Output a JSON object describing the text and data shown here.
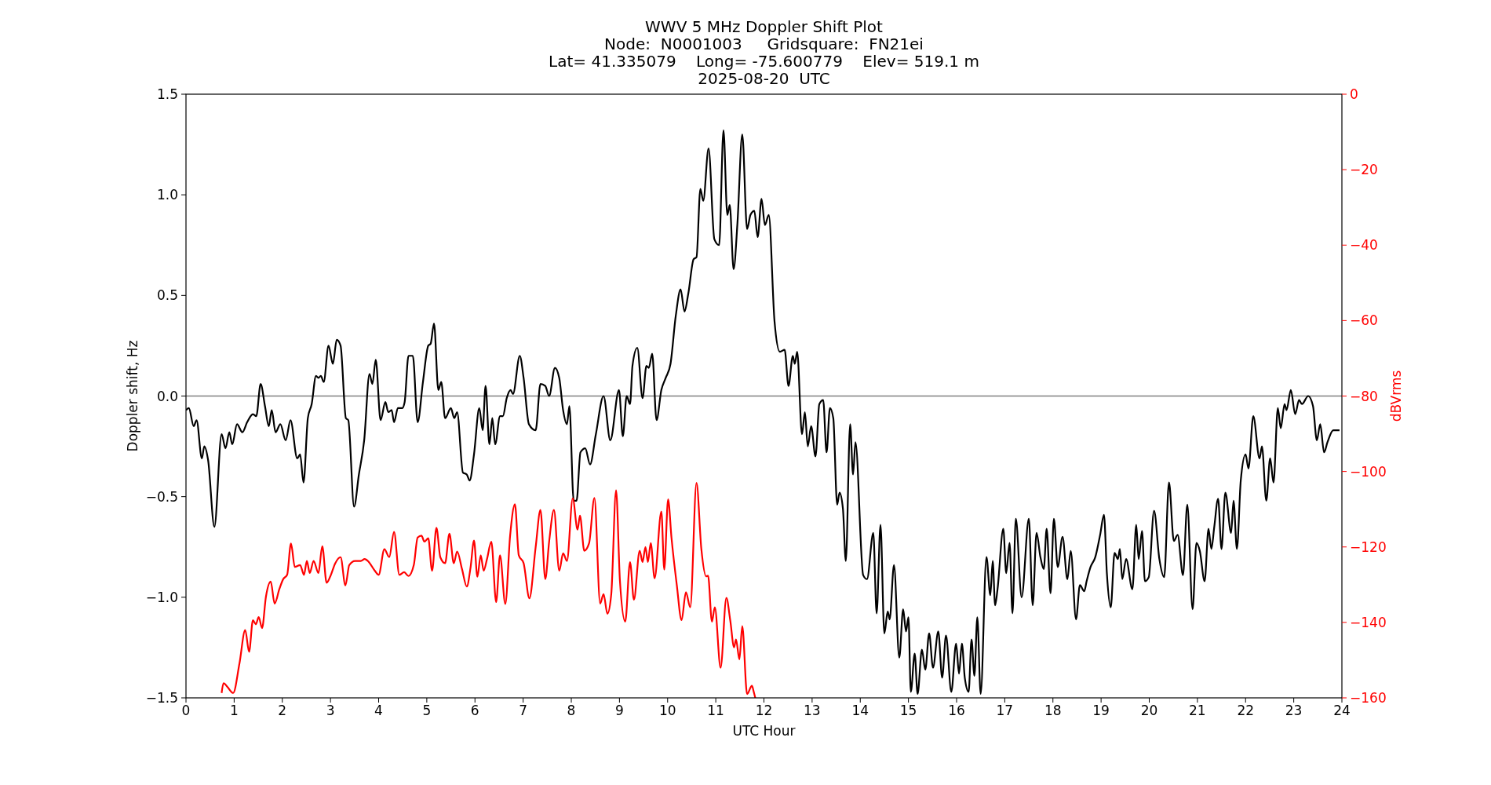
{
  "chart_data": {
    "type": "line",
    "title": "WWV 5 MHz Doppler Shift Plot\nNode:  N0001003     Gridsquare:  FN21ei\nLat= 41.335079    Long= -75.600779    Elev= 519.1 m\n2025-08-20  UTC",
    "xlabel": "UTC Hour",
    "ylabel": "Doppler shift, Hz",
    "y2label": "dBVrms",
    "xlim": [
      0,
      24
    ],
    "xticks": [
      0,
      1,
      2,
      3,
      4,
      5,
      6,
      7,
      8,
      9,
      10,
      11,
      12,
      13,
      14,
      15,
      16,
      17,
      18,
      19,
      20,
      21,
      22,
      23,
      24
    ],
    "ylim": [
      -1.5,
      1.5
    ],
    "yticks": [
      {
        "value": -1.5,
        "label": "−1.5"
      },
      {
        "value": -1,
        "label": "−1.0"
      },
      {
        "value": -0.5,
        "label": "−0.5"
      },
      {
        "value": 0,
        "label": "0.0"
      },
      {
        "value": 0.5,
        "label": "0.5"
      },
      {
        "value": 1,
        "label": "1.0"
      },
      {
        "value": 1.5,
        "label": "1.5"
      }
    ],
    "y2lim": [
      -160,
      0
    ],
    "y2ticks": [
      {
        "value": -160,
        "label": "−160"
      },
      {
        "value": -140,
        "label": "−140"
      },
      {
        "value": -120,
        "label": "−120"
      },
      {
        "value": -100,
        "label": "−100"
      },
      {
        "value": -80,
        "label": "−80"
      },
      {
        "value": -60,
        "label": "−60"
      },
      {
        "value": -40,
        "label": "−40"
      },
      {
        "value": -20,
        "label": "−20"
      },
      {
        "value": 0,
        "label": "0"
      }
    ],
    "ref_lines": [
      {
        "axis": "y",
        "value": 0,
        "color": "#808080"
      }
    ],
    "grid": false,
    "series": [
      {
        "color": "#000000",
        "x": [
          0,
          0.06,
          0.16,
          0.22,
          0.33,
          0.38,
          0.46,
          0.59,
          0.74,
          0.82,
          0.9,
          0.96,
          1.06,
          1.17,
          1.27,
          1.39,
          1.46,
          1.55,
          1.64,
          1.72,
          1.78,
          1.86,
          1.96,
          2.07,
          2.17,
          2.31,
          2.37,
          2.44,
          2.53,
          2.61,
          2.7,
          2.75,
          2.8,
          2.86,
          2.96,
          3.05,
          3.13,
          3.21,
          3.32,
          3.37,
          3.49,
          3.59,
          3.7,
          3.81,
          3.87,
          3.94,
          4.04,
          4.14,
          4.2,
          4.27,
          4.32,
          4.4,
          4.49,
          4.54,
          4.62,
          4.71,
          4.81,
          4.92,
          5.03,
          5.08,
          5.15,
          5.24,
          5.3,
          5.38,
          5.5,
          5.57,
          5.63,
          5.75,
          5.83,
          5.89,
          5.98,
          6.09,
          6.16,
          6.22,
          6.3,
          6.36,
          6.42,
          6.52,
          6.58,
          6.66,
          6.74,
          6.79,
          6.93,
          7.01,
          7.12,
          7.26,
          7.36,
          7.46,
          7.54,
          7.66,
          7.75,
          7.83,
          7.91,
          7.96,
          8.05,
          8.11,
          8.19,
          8.29,
          8.39,
          8.51,
          8.67,
          8.81,
          8.99,
          9.07,
          9.15,
          9.22,
          9.27,
          9.37,
          9.48,
          9.56,
          9.61,
          9.68,
          9.77,
          9.87,
          9.96,
          10.06,
          10.17,
          10.27,
          10.35,
          10.43,
          10.54,
          10.6,
          10.68,
          10.74,
          10.85,
          10.97,
          11.07,
          11.16,
          11.24,
          11.29,
          11.37,
          11.45,
          11.55,
          11.65,
          11.72,
          11.8,
          11.87,
          11.95,
          12.02,
          12.1,
          12.22,
          12.33,
          12.43,
          12.51,
          12.6,
          12.64,
          12.69,
          12.79,
          12.85,
          12.91,
          12.98,
          13.07,
          13.15,
          13.23,
          13.3,
          13.37,
          13.44,
          13.52,
          13.57,
          13.64,
          13.7,
          13.79,
          13.85,
          13.9,
          14.06,
          14.14,
          14.27,
          14.34,
          14.42,
          14.5,
          14.57,
          14.61,
          14.7,
          14.81,
          14.89,
          14.95,
          15,
          15.05,
          15.13,
          15.19,
          15.28,
          15.35,
          15.43,
          15.51,
          15.62,
          15.7,
          15.78,
          15.89,
          15.99,
          16.05,
          16.11,
          16.17,
          16.25,
          16.31,
          16.37,
          16.43,
          16.5,
          16.62,
          16.7,
          16.75,
          16.8,
          16.85,
          16.97,
          17.03,
          17.1,
          17.16,
          17.23,
          17.35,
          17.5,
          17.58,
          17.66,
          17.74,
          17.81,
          17.87,
          17.95,
          18.02,
          18.1,
          18.2,
          18.3,
          18.37,
          18.48,
          18.56,
          18.65,
          18.7,
          18.78,
          18.88,
          18.98,
          19.06,
          19.12,
          19.2,
          19.28,
          19.35,
          19.39,
          19.44,
          19.52,
          19.65,
          19.73,
          19.78,
          19.85,
          19.91,
          19.99,
          20.1,
          20.21,
          20.31,
          20.41,
          20.51,
          20.59,
          20.7,
          20.79,
          20.9,
          20.98,
          21.05,
          21.15,
          21.23,
          21.29,
          21.35,
          21.43,
          21.5,
          21.58,
          21.7,
          21.75,
          21.82,
          21.9,
          22,
          22.06,
          22.16,
          22.29,
          22.34,
          22.43,
          22.51,
          22.58,
          22.67,
          22.73,
          22.81,
          22.85,
          22.94,
          23.03,
          23.11,
          23.17,
          23.3,
          23.4,
          23.48,
          23.55,
          23.63,
          23.7,
          23.82,
          23.95
        ],
        "values": [
          -0.07,
          -0.06,
          -0.15,
          -0.12,
          -0.31,
          -0.25,
          -0.32,
          -0.65,
          -0.19,
          -0.26,
          -0.18,
          -0.24,
          -0.14,
          -0.18,
          -0.13,
          -0.09,
          -0.1,
          0.06,
          -0.05,
          -0.15,
          -0.07,
          -0.18,
          -0.14,
          -0.22,
          -0.12,
          -0.31,
          -0.29,
          -0.43,
          -0.11,
          -0.04,
          0.1,
          0.09,
          0.1,
          0.07,
          0.25,
          0.16,
          0.28,
          0.25,
          -0.11,
          -0.12,
          -0.55,
          -0.39,
          -0.22,
          0.11,
          0.06,
          0.18,
          -0.12,
          -0.03,
          -0.08,
          -0.07,
          -0.13,
          -0.06,
          -0.06,
          -0.03,
          0.2,
          0.2,
          -0.13,
          0.07,
          0.25,
          0.26,
          0.36,
          0.03,
          0.07,
          -0.11,
          -0.06,
          -0.11,
          -0.08,
          -0.38,
          -0.39,
          -0.42,
          -0.29,
          -0.06,
          -0.17,
          0.05,
          -0.24,
          -0.11,
          -0.24,
          -0.1,
          -0.1,
          -0.01,
          0.03,
          0.01,
          0.2,
          0.09,
          -0.14,
          -0.17,
          0.06,
          0.05,
          0,
          0.14,
          0.09,
          -0.07,
          -0.14,
          -0.05,
          -0.52,
          -0.52,
          -0.28,
          -0.26,
          -0.34,
          -0.19,
          0,
          -0.22,
          0.03,
          -0.2,
          0,
          -0.04,
          0.15,
          0.24,
          -0.01,
          0.15,
          0.14,
          0.21,
          -0.12,
          0.03,
          0.09,
          0.16,
          0.4,
          0.53,
          0.42,
          0.51,
          0.68,
          0.69,
          1.03,
          0.97,
          1.23,
          0.78,
          0.75,
          1.32,
          0.9,
          0.95,
          0.63,
          0.86,
          1.3,
          0.83,
          0.9,
          0.92,
          0.79,
          0.98,
          0.85,
          0.9,
          0.37,
          0.22,
          0.23,
          0.05,
          0.2,
          0.16,
          0.22,
          -0.19,
          -0.08,
          -0.25,
          -0.15,
          -0.3,
          -0.04,
          -0.02,
          -0.28,
          -0.06,
          -0.11,
          -0.54,
          -0.48,
          -0.56,
          -0.82,
          -0.14,
          -0.39,
          -0.23,
          -0.89,
          -0.91,
          -0.68,
          -1.08,
          -0.64,
          -1.18,
          -1.07,
          -1.11,
          -0.84,
          -1.3,
          -1.06,
          -1.17,
          -1.1,
          -1.47,
          -1.28,
          -1.48,
          -1.26,
          -1.36,
          -1.18,
          -1.35,
          -1.17,
          -1.4,
          -1.19,
          -1.47,
          -1.23,
          -1.38,
          -1.23,
          -1.4,
          -1.47,
          -1.21,
          -1.39,
          -1.1,
          -1.48,
          -0.8,
          -0.99,
          -0.82,
          -1.04,
          -0.96,
          -0.66,
          -0.88,
          -0.73,
          -1.08,
          -0.61,
          -1,
          -0.61,
          -1.04,
          -0.68,
          -0.8,
          -0.86,
          -0.66,
          -0.98,
          -0.61,
          -0.85,
          -0.7,
          -0.91,
          -0.77,
          -1.11,
          -0.94,
          -0.97,
          -0.92,
          -0.85,
          -0.8,
          -0.69,
          -0.59,
          -0.88,
          -1.05,
          -0.78,
          -0.81,
          -0.76,
          -0.91,
          -0.81,
          -0.96,
          -0.64,
          -0.81,
          -0.67,
          -0.92,
          -0.9,
          -0.57,
          -0.81,
          -0.9,
          -0.43,
          -0.72,
          -0.69,
          -0.89,
          -0.54,
          -1.06,
          -0.73,
          -0.77,
          -0.92,
          -0.66,
          -0.76,
          -0.65,
          -0.51,
          -0.76,
          -0.48,
          -0.68,
          -0.52,
          -0.76,
          -0.42,
          -0.29,
          -0.36,
          -0.1,
          -0.31,
          -0.25,
          -0.52,
          -0.31,
          -0.43,
          -0.06,
          -0.16,
          -0.04,
          -0.07,
          0.03,
          -0.09,
          -0.02,
          -0.04,
          0,
          -0.05,
          -0.22,
          -0.14,
          -0.28,
          -0.23,
          -0.17,
          -0.17
        ]
      },
      {
        "color": "#ff0000",
        "axis": "y2",
        "x": [
          0.74,
          0.78,
          0.86,
          0.98,
          1.11,
          1.23,
          1.31,
          1.39,
          1.45,
          1.51,
          1.58,
          1.66,
          1.76,
          1.84,
          1.94,
          2.02,
          2.1,
          2.18,
          2.26,
          2.37,
          2.45,
          2.51,
          2.57,
          2.65,
          2.75,
          2.83,
          2.92,
          3,
          3.1,
          3.21,
          3.31,
          3.39,
          3.51,
          3.63,
          3.71,
          3.79,
          3.92,
          4,
          4.12,
          4.22,
          4.32,
          4.43,
          4.53,
          4.62,
          4.73,
          4.81,
          4.89,
          4.95,
          5.03,
          5.11,
          5.2,
          5.28,
          5.38,
          5.47,
          5.56,
          5.63,
          5.73,
          5.83,
          5.91,
          5.98,
          6.05,
          6.12,
          6.18,
          6.25,
          6.34,
          6.44,
          6.52,
          6.63,
          6.73,
          6.83,
          6.91,
          7.01,
          7.13,
          7.26,
          7.36,
          7.46,
          7.54,
          7.64,
          7.75,
          7.83,
          7.91,
          8.03,
          8.13,
          8.18,
          8.27,
          8.37,
          8.48,
          8.6,
          8.67,
          8.75,
          8.83,
          8.93,
          9.01,
          9.12,
          9.22,
          9.3,
          9.42,
          9.48,
          9.54,
          9.59,
          9.65,
          9.73,
          9.87,
          9.93,
          10.01,
          10.08,
          10.19,
          10.29,
          10.38,
          10.47,
          10.6,
          10.7,
          10.8,
          10.84,
          10.92,
          10.98,
          11.1,
          11.22,
          11.3,
          11.38,
          11.42,
          11.49,
          11.55,
          11.65,
          11.75,
          11.79,
          11.82
        ],
        "values": [
          -158.7,
          -156.1,
          -157.1,
          -158.7,
          -150.9,
          -142,
          -147.8,
          -139.4,
          -140.5,
          -138.6,
          -141.5,
          -133.2,
          -129.2,
          -135,
          -131.1,
          -128.5,
          -127.4,
          -119.1,
          -125.3,
          -124.8,
          -127.4,
          -123.7,
          -126.9,
          -123.7,
          -126.9,
          -119.8,
          -129.5,
          -127.7,
          -124.3,
          -122.7,
          -130.2,
          -124.8,
          -123.7,
          -123.7,
          -123.2,
          -123.9,
          -126.3,
          -127.4,
          -120.6,
          -122.7,
          -116,
          -127.4,
          -126.7,
          -127.7,
          -124.8,
          -117.5,
          -117,
          -118.6,
          -117.7,
          -126.3,
          -114.9,
          -122.7,
          -124.3,
          -116.5,
          -124.3,
          -121.2,
          -125.8,
          -130.5,
          -125.3,
          -118.3,
          -127.9,
          -122.2,
          -126.3,
          -123.2,
          -118.6,
          -134.6,
          -122.2,
          -135.1,
          -117,
          -108.7,
          -122.2,
          -124.3,
          -133.6,
          -120.1,
          -110.2,
          -128.5,
          -118.6,
          -110.2,
          -126.3,
          -121.7,
          -123.7,
          -107.1,
          -115.4,
          -111.7,
          -121,
          -119,
          -107,
          -135,
          -132.5,
          -137.7,
          -132.5,
          -105,
          -129,
          -139.8,
          -124,
          -134,
          -121,
          -124,
          -120,
          -124,
          -119,
          -128.3,
          -110.6,
          -126,
          -107.4,
          -117.5,
          -130,
          -139.4,
          -132,
          -136,
          -103,
          -120.5,
          -127.8,
          -127.6,
          -139.8,
          -136,
          -152,
          -133.5,
          -139.4,
          -146.6,
          -144.5,
          -149.8,
          -141,
          -159,
          -156.8,
          -158.5,
          -160
        ]
      }
    ]
  }
}
